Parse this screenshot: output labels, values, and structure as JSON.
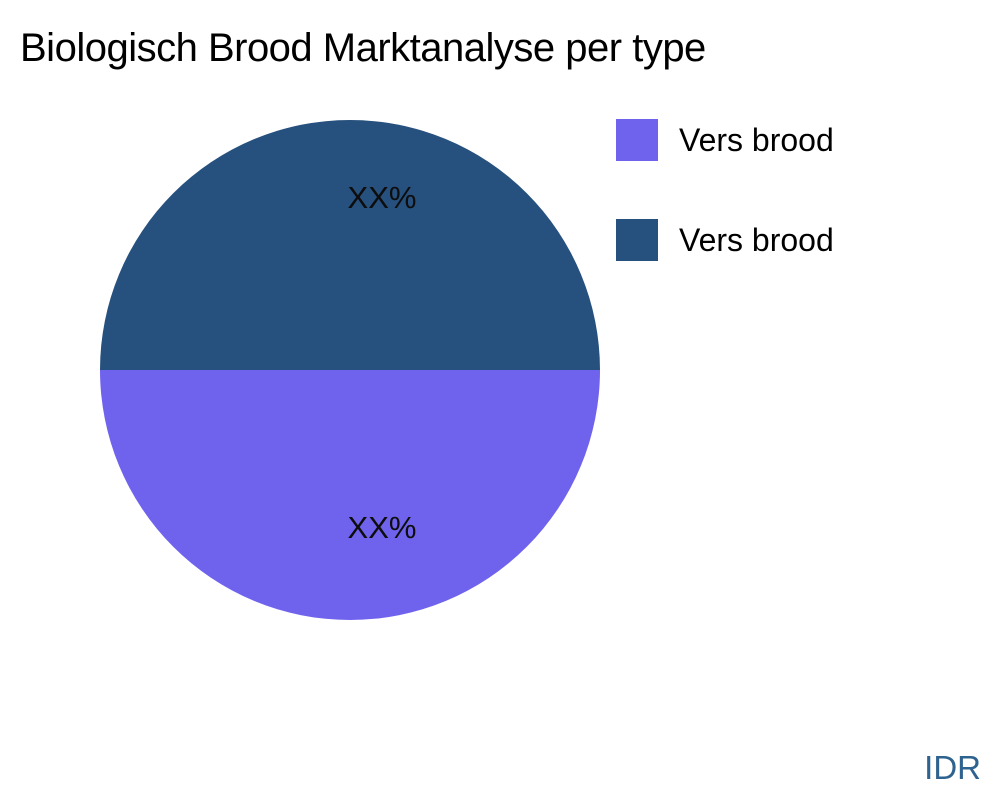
{
  "page": {
    "watermark": "IDR"
  },
  "colors": {
    "background": "#ffffff",
    "title_text": "#000000",
    "slice_label_text": "#0d0d0d",
    "legend_text": "#000000",
    "watermark_text": "#2e628f"
  },
  "chart_data": {
    "type": "pie",
    "title": "Biologisch Brood Marktanalyse per type",
    "slices": [
      {
        "label": "Vers brood",
        "value": 50,
        "display_value": "XX%",
        "color": "#6f63ed",
        "position": "bottom"
      },
      {
        "label": "Vers brood",
        "value": 50,
        "display_value": "XX%",
        "color": "#26507d",
        "position": "top"
      }
    ],
    "legend_position": "top-right",
    "start_angle": 180,
    "grid": false
  }
}
